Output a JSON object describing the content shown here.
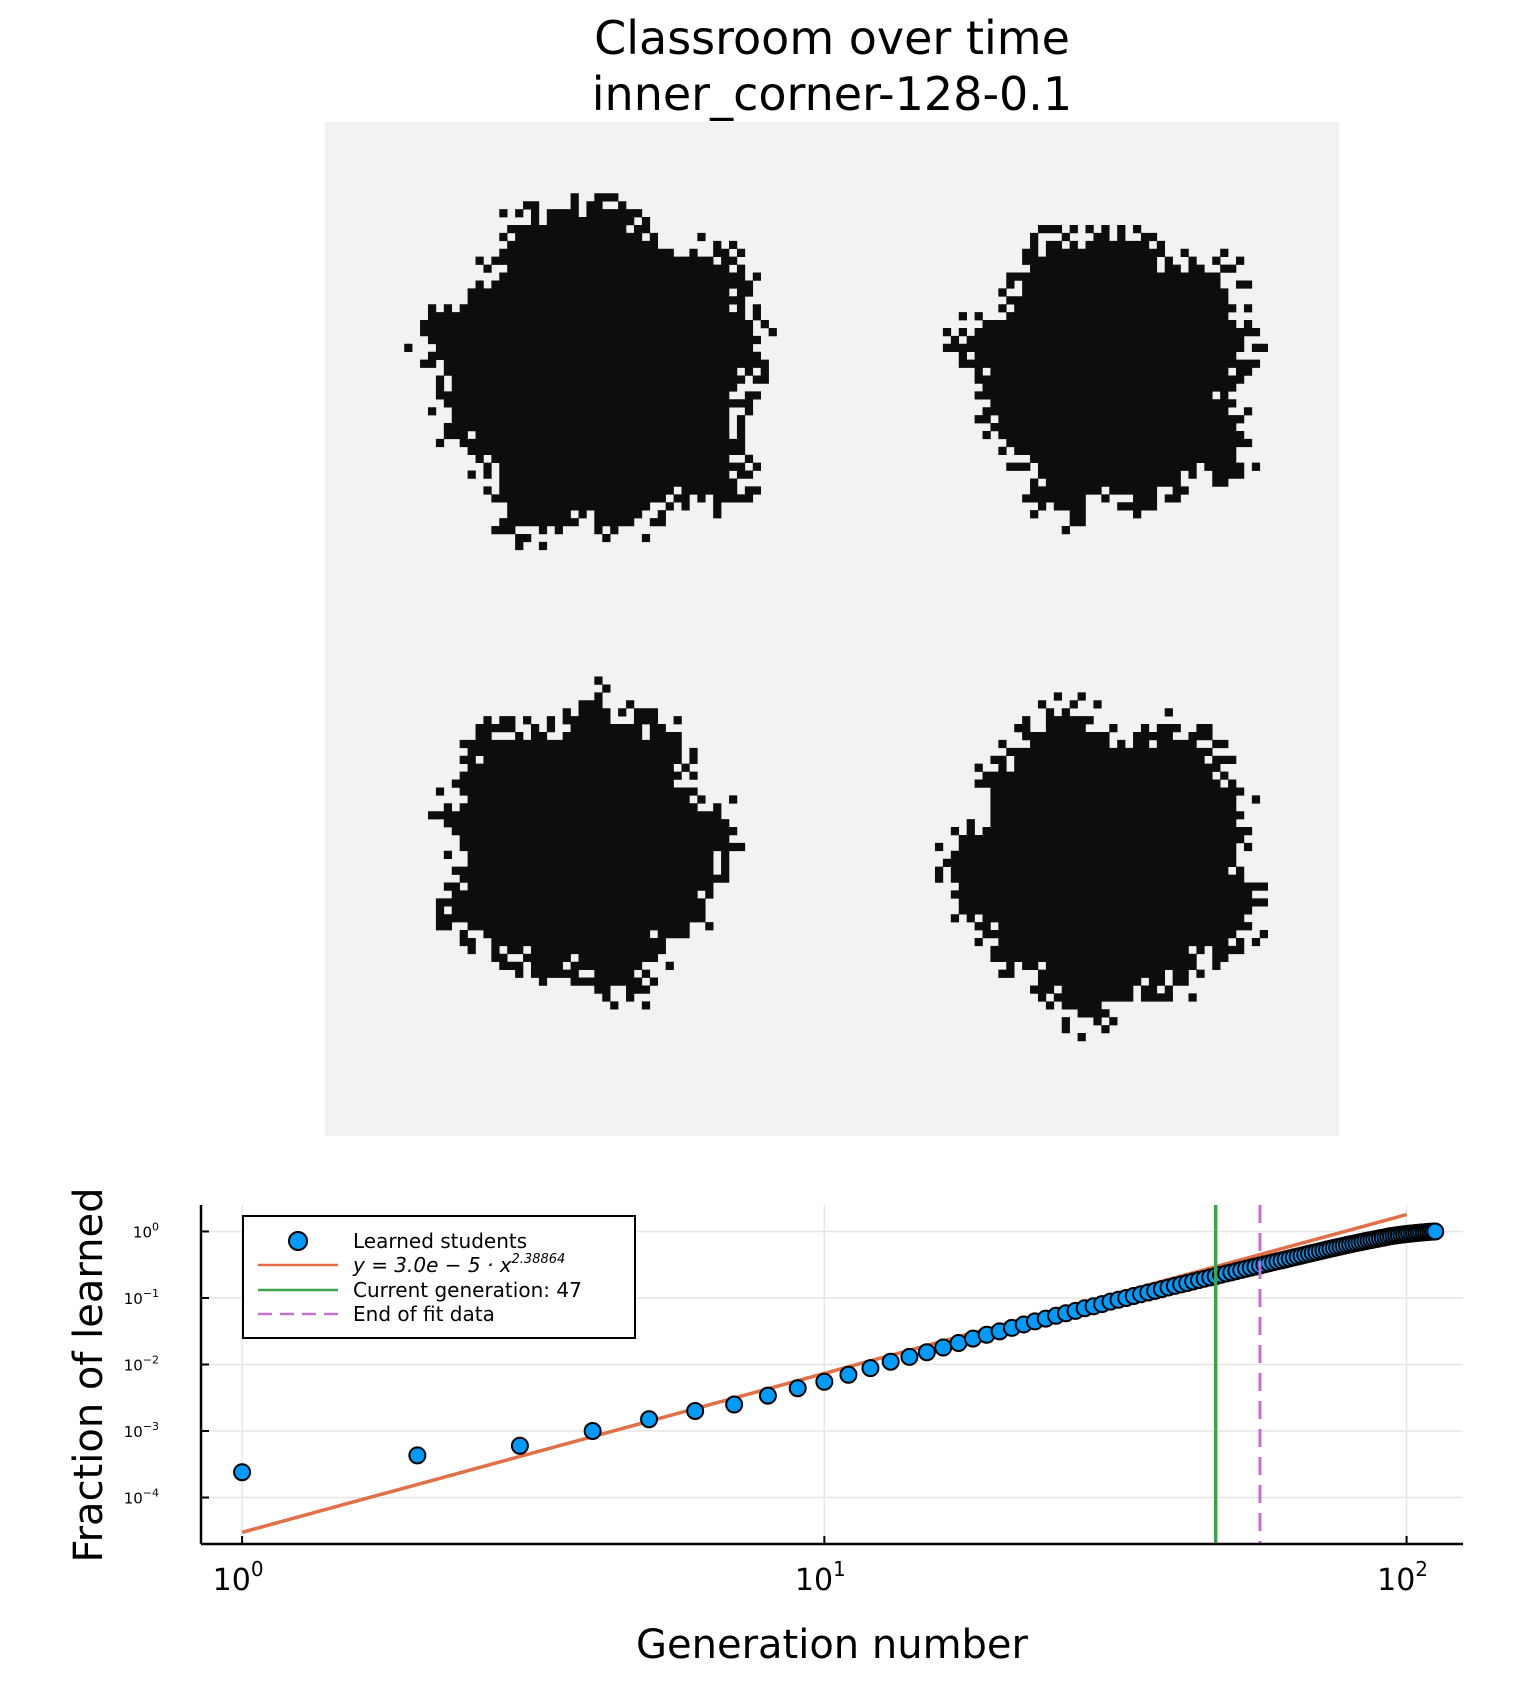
{
  "title_lines": [
    "Classroom over time",
    "inner_corner-128-0.1"
  ],
  "heatmap": {
    "type": "heatmap",
    "description_values": "binary grid 128x128: 1 = learned (black), 0 = not learned (light gray)",
    "grid_size": 128,
    "colors": {
      "learned": "#0d0d0d",
      "background": "#f2f2f2"
    },
    "blobs": [
      {
        "name": "top-left",
        "center_cell": [
          34,
          31
        ],
        "radius_cells": 20
      },
      {
        "name": "top-right",
        "center_cell": [
          99,
          31
        ],
        "radius_cells": 17
      },
      {
        "name": "bottom-left",
        "center_cell": [
          32,
          91
        ],
        "radius_cells": 17
      },
      {
        "name": "bottom-right",
        "center_cell": [
          98,
          93
        ],
        "radius_cells": 18
      }
    ]
  },
  "chart_data": {
    "type": "scatter",
    "xlabel": "Generation number",
    "ylabel": "Fraction of learned",
    "xscale": "log",
    "yscale": "log",
    "xlim": [
      0.85,
      125
    ],
    "ylim": [
      2e-05,
      2.5
    ],
    "x_ticks": [
      {
        "value": 1,
        "label": "10",
        "exp": "0"
      },
      {
        "value": 10,
        "label": "10",
        "exp": "1"
      },
      {
        "value": 100,
        "label": "10",
        "exp": "2"
      }
    ],
    "y_ticks": [
      {
        "value": 0.0001,
        "label": "10",
        "exp": "−4"
      },
      {
        "value": 0.001,
        "label": "10",
        "exp": "−3"
      },
      {
        "value": 0.01,
        "label": "10",
        "exp": "−2"
      },
      {
        "value": 0.1,
        "label": "10",
        "exp": "−1"
      },
      {
        "value": 1,
        "label": "10",
        "exp": "0"
      }
    ],
    "grid": true,
    "legend_position": "top-left",
    "series": [
      {
        "name": "Learned students",
        "kind": "scatter",
        "color": "#009af9",
        "x": [
          1,
          2,
          3,
          4,
          5,
          6,
          7,
          8,
          9,
          10,
          11,
          12,
          13,
          14,
          15,
          16,
          17,
          18,
          19,
          20,
          21,
          22,
          23,
          24,
          25,
          26,
          27,
          28,
          29,
          30,
          31,
          32,
          33,
          34,
          35,
          36,
          37,
          38,
          39,
          40,
          41,
          42,
          43,
          44,
          45,
          46,
          47,
          48,
          49,
          50,
          51,
          52,
          53,
          54,
          55,
          56,
          57,
          58,
          59,
          60,
          61,
          62,
          63,
          64,
          65,
          66,
          67,
          68,
          69,
          70,
          71,
          72,
          73,
          74,
          75,
          76,
          77,
          78,
          79,
          80,
          81,
          82,
          83,
          84,
          85,
          86,
          87,
          88,
          89,
          90,
          91,
          92,
          93,
          94,
          95,
          96,
          97,
          98,
          99,
          100,
          101,
          102,
          103,
          104,
          105,
          106,
          107,
          108,
          109,
          110,
          111,
          112
        ],
        "y": [
          0.00024,
          0.00043,
          0.0006,
          0.001,
          0.0015,
          0.002,
          0.0025,
          0.0034,
          0.0044,
          0.0055,
          0.007,
          0.0088,
          0.011,
          0.013,
          0.0153,
          0.018,
          0.021,
          0.0245,
          0.028,
          0.0315,
          0.0355,
          0.04,
          0.0445,
          0.049,
          0.054,
          0.059,
          0.064,
          0.07,
          0.075,
          0.081,
          0.088,
          0.094,
          0.1,
          0.107,
          0.114,
          0.121,
          0.128,
          0.136,
          0.144,
          0.152,
          0.16,
          0.168,
          0.177,
          0.186,
          0.195,
          0.204,
          0.213,
          0.223,
          0.233,
          0.243,
          0.253,
          0.264,
          0.275,
          0.286,
          0.297,
          0.308,
          0.32,
          0.332,
          0.344,
          0.356,
          0.368,
          0.381,
          0.394,
          0.407,
          0.42,
          0.434,
          0.448,
          0.462,
          0.476,
          0.49,
          0.505,
          0.52,
          0.535,
          0.55,
          0.565,
          0.58,
          0.595,
          0.61,
          0.625,
          0.64,
          0.655,
          0.67,
          0.685,
          0.7,
          0.715,
          0.73,
          0.745,
          0.76,
          0.775,
          0.79,
          0.805,
          0.82,
          0.835,
          0.85,
          0.862,
          0.874,
          0.885,
          0.895,
          0.905,
          0.915,
          0.924,
          0.933,
          0.941,
          0.949,
          0.957,
          0.964,
          0.971,
          0.978,
          0.984,
          0.99,
          0.995,
          1.0
        ]
      },
      {
        "name": "y = 3.0e − 5 · x^2.38864",
        "name_parts": {
          "prefix": "y = 3.0e − 5 · x",
          "exponent": "2.38864"
        },
        "kind": "line",
        "color": "#e26f46",
        "coefficient": 3e-05,
        "exponent": 2.38864,
        "x_range": [
          1,
          100
        ]
      },
      {
        "name": "Current generation: 47",
        "kind": "vline",
        "color": "#3da44d",
        "x": 47
      },
      {
        "name": "End of fit data",
        "kind": "vline-dashed",
        "color": "#c271d2",
        "x": 56
      }
    ]
  }
}
